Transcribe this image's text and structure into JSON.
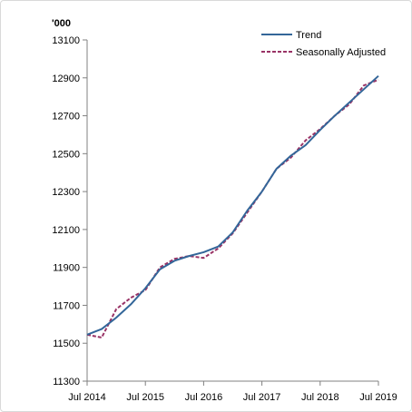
{
  "chart_data": {
    "type": "line",
    "unit_label": "'000",
    "x": [
      "Jul 2014",
      "Oct 2014",
      "Jan 2015",
      "Apr 2015",
      "Jul 2015",
      "Oct 2015",
      "Jan 2016",
      "Apr 2016",
      "Jul 2016",
      "Oct 2016",
      "Jan 2017",
      "Apr 2017",
      "Jul 2017",
      "Oct 2017",
      "Jan 2018",
      "Apr 2018",
      "Jul 2018",
      "Oct 2018",
      "Jan 2019",
      "Apr 2019",
      "Jul 2019"
    ],
    "x_tick_labels": [
      "Jul 2014",
      "Jul 2015",
      "Jul 2016",
      "Jul 2017",
      "Jul 2018",
      "Jul 2019"
    ],
    "ylim": [
      11300,
      13100
    ],
    "y_ticks": [
      11300,
      11500,
      11700,
      11900,
      12100,
      12300,
      12500,
      12700,
      12900,
      13100
    ],
    "grid": false,
    "legend_position": "top-right",
    "series": [
      {
        "name": "Trend",
        "color": "#336699",
        "style": "solid",
        "values": [
          11545,
          11575,
          11635,
          11705,
          11790,
          11890,
          11935,
          11960,
          11980,
          12010,
          12085,
          12200,
          12300,
          12420,
          12490,
          12545,
          12625,
          12700,
          12770,
          12840,
          12910
        ]
      },
      {
        "name": "Seasonally Adjusted",
        "color": "#993366",
        "style": "dashed",
        "values": [
          11545,
          11530,
          11680,
          11740,
          11780,
          11900,
          11945,
          11960,
          11950,
          12000,
          12080,
          12190,
          12300,
          12420,
          12480,
          12570,
          12630,
          12700,
          12760,
          12860,
          12890
        ]
      }
    ]
  }
}
